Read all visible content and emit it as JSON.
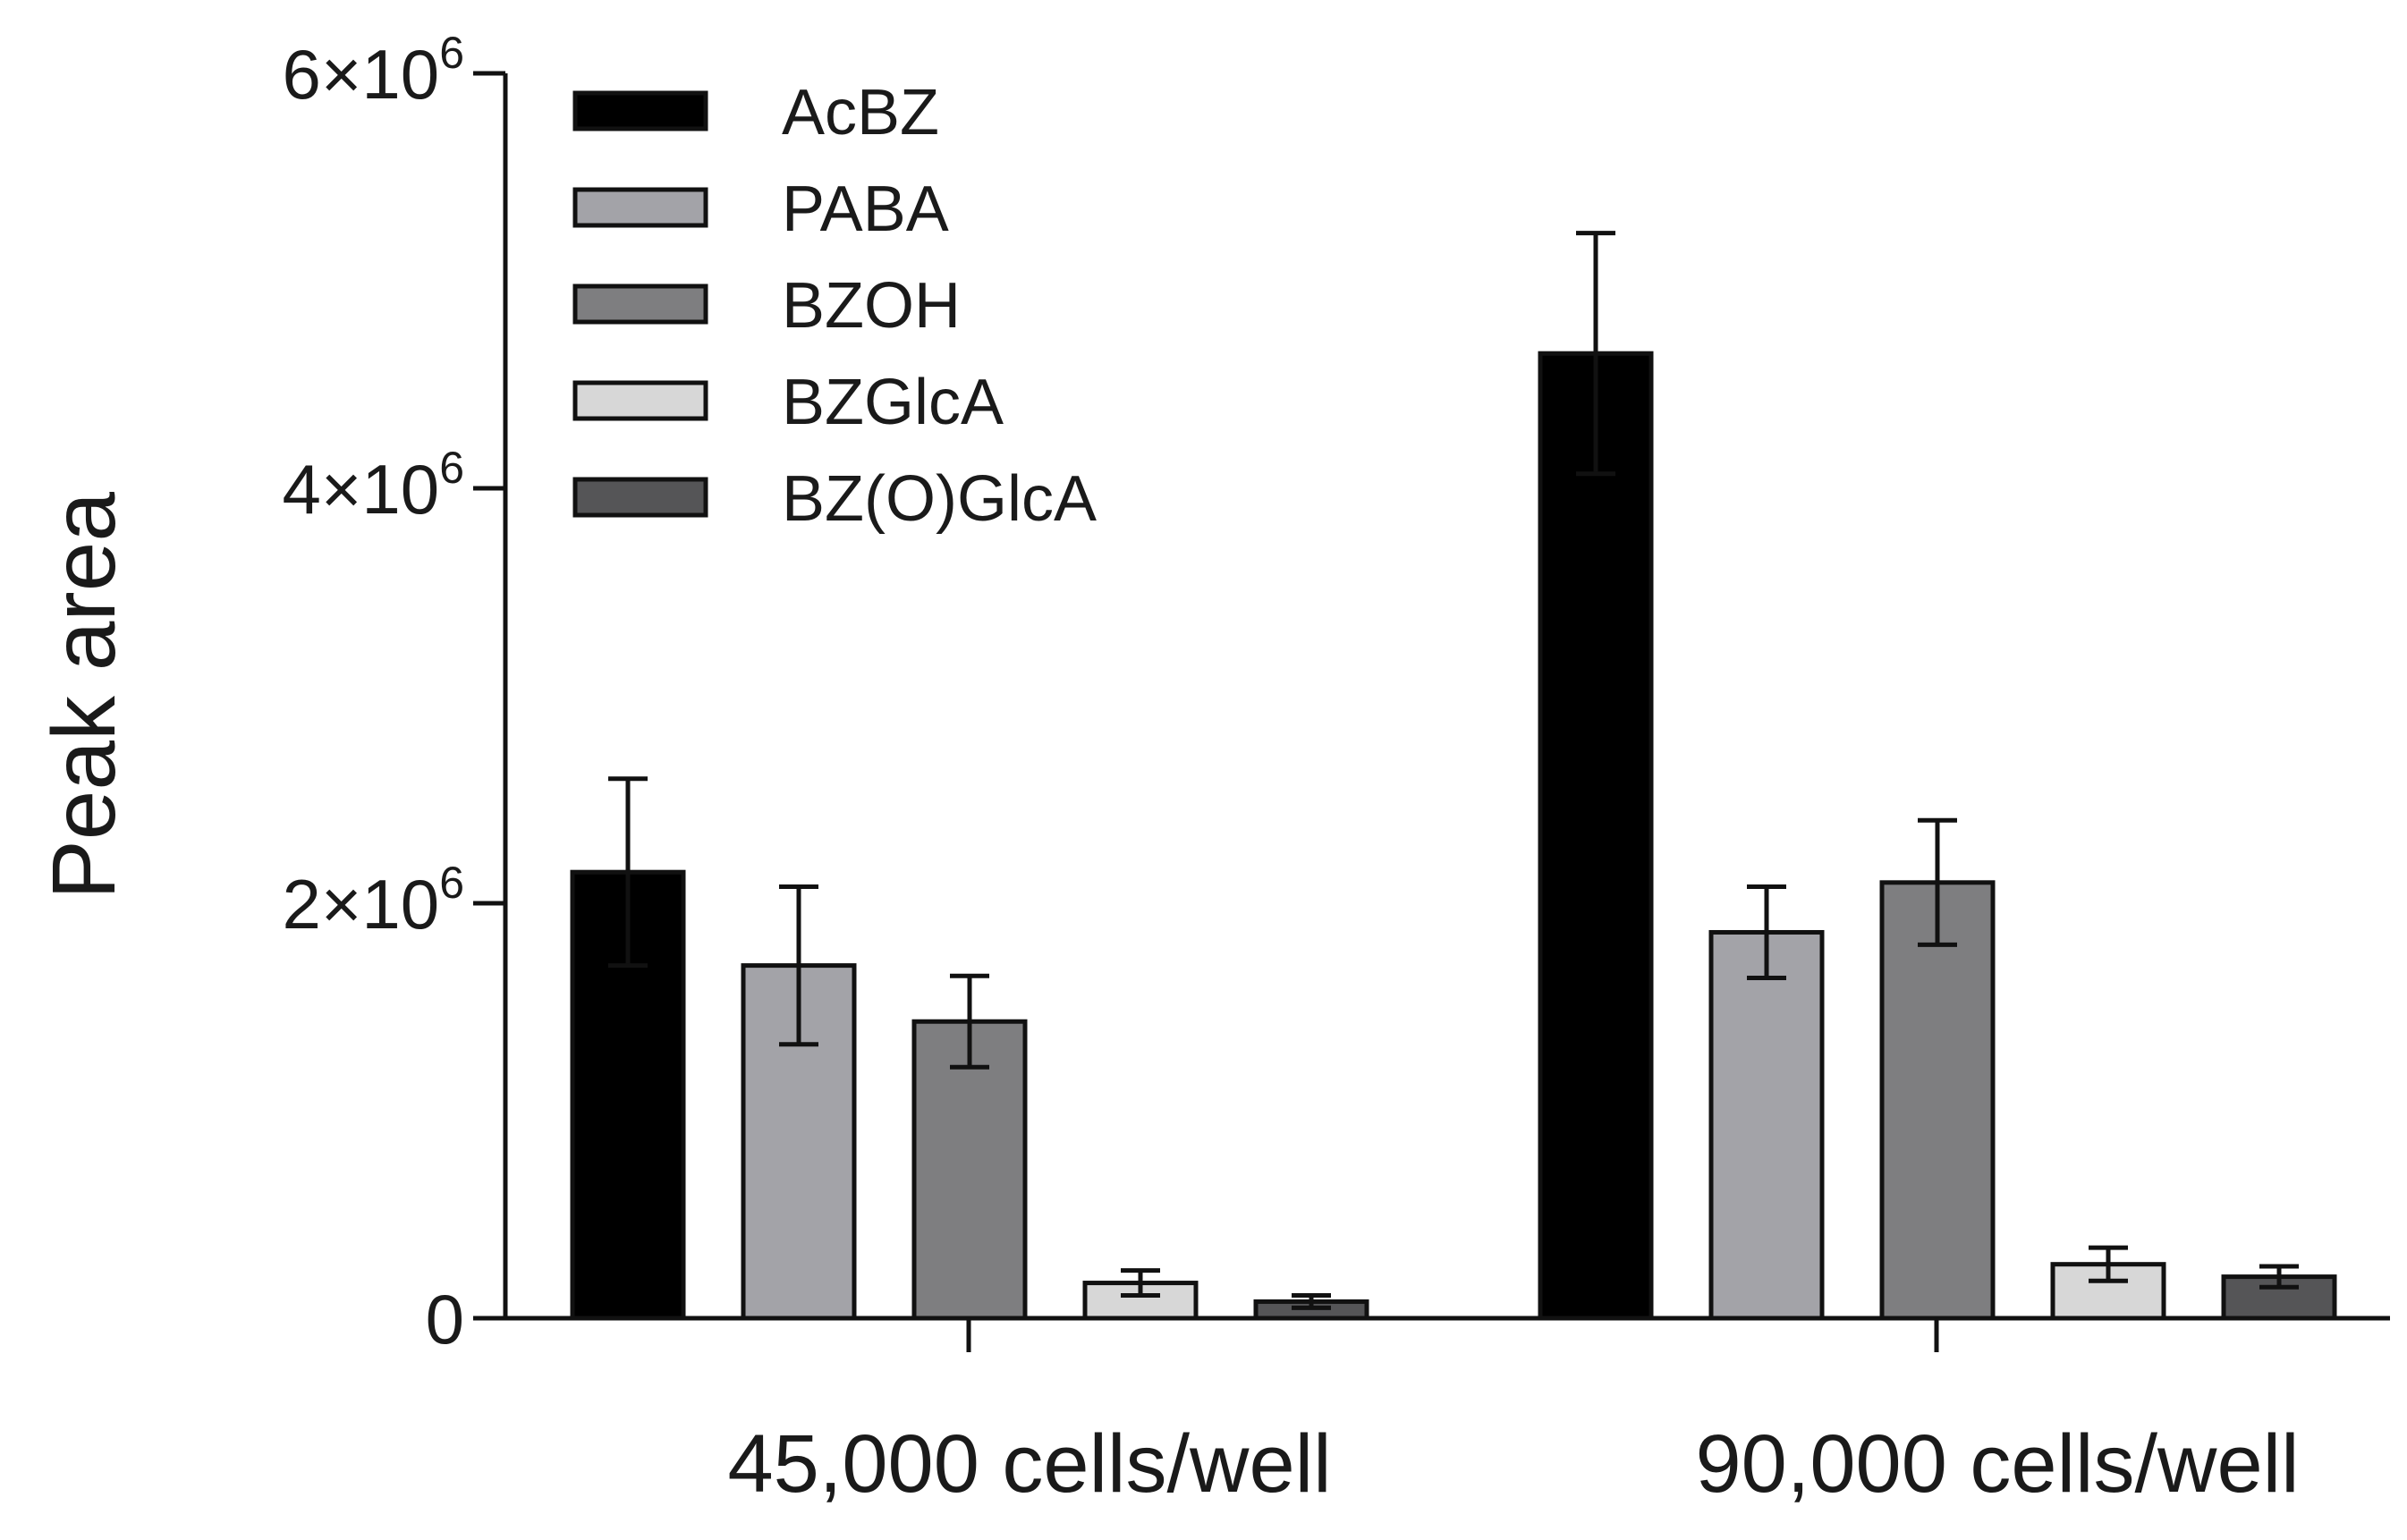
{
  "chart_data": {
    "type": "bar",
    "title": "",
    "xlabel": "",
    "ylabel": "Peak area",
    "ylim": [
      0,
      6000000
    ],
    "y_ticks": [
      {
        "value": 0,
        "label": "0",
        "sup": ""
      },
      {
        "value": 2000000,
        "label": "2×10",
        "sup": "6"
      },
      {
        "value": 4000000,
        "label": "4×10",
        "sup": "6"
      },
      {
        "value": 6000000,
        "label": "6×10",
        "sup": "6"
      }
    ],
    "categories": [
      "45,000 cells/well",
      "90,000 cells/well"
    ],
    "series": [
      {
        "name": "AcBZ",
        "color": "#000000",
        "values": [
          2150000,
          4650000
        ],
        "errors": [
          450000,
          580000
        ]
      },
      {
        "name": "PABA",
        "color": "#a3a3a8",
        "values": [
          1700000,
          1860000
        ],
        "errors": [
          380000,
          220000
        ]
      },
      {
        "name": "BZOH",
        "color": "#7e7e80",
        "values": [
          1430000,
          2100000
        ],
        "errors": [
          220000,
          300000
        ]
      },
      {
        "name": "BZGlcA",
        "color": "#d7d7d7",
        "values": [
          170000,
          260000
        ],
        "errors": [
          60000,
          80000
        ]
      },
      {
        "name": "BZ(O)GlcA",
        "color": "#555557",
        "values": [
          80000,
          200000
        ],
        "errors": [
          30000,
          50000
        ]
      }
    ],
    "legend_position": "top-left",
    "grid": false
  }
}
